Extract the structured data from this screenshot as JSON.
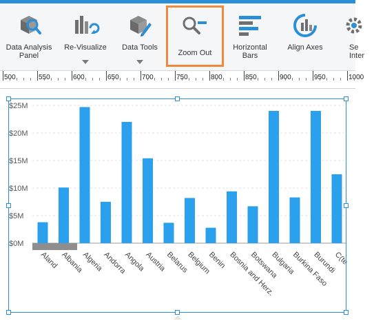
{
  "ribbon": {
    "buttons": [
      {
        "id": "data-analysis-panel",
        "label": "Data Analysis\nPanel",
        "icon": "data-analysis-icon",
        "has_menu": false,
        "active": false
      },
      {
        "id": "re-visualize",
        "label": "Re-Visualize",
        "icon": "re-visualize-icon",
        "has_menu": true,
        "active": false
      },
      {
        "id": "data-tools",
        "label": "Data Tools",
        "icon": "data-tools-icon",
        "has_menu": true,
        "active": false
      },
      {
        "id": "zoom-out",
        "label": "Zoom Out",
        "icon": "zoom-out-icon",
        "has_menu": false,
        "active": true
      },
      {
        "id": "horizontal-bars",
        "label": "Horizontal\nBars",
        "icon": "horizontal-bars-icon",
        "has_menu": false,
        "active": false
      },
      {
        "id": "align-axes",
        "label": "Align Axes",
        "icon": "align-axes-icon",
        "has_menu": false,
        "active": false
      },
      {
        "id": "set-interaction",
        "label": "Se\nInter",
        "icon": "gear-icon",
        "has_menu": false,
        "active": false
      }
    ]
  },
  "ruler": {
    "labels": [
      "500",
      "550",
      "600",
      "650",
      "700",
      "750",
      "800",
      "850",
      "900",
      "950",
      "1000"
    ]
  },
  "colors": {
    "accent": "#2a8fd8",
    "bar": "#2ba1ee",
    "highlight": "#f0883e",
    "icon_gray": "#6f6f6f"
  },
  "chart_data": {
    "type": "bar",
    "title": "",
    "xlabel": "",
    "ylabel": "",
    "categories": [
      "Aland",
      "Albania",
      "Algeria",
      "Andorra",
      "Angola",
      "Austria",
      "Belarus",
      "Belgium",
      "Benin",
      "Bosnia and Herz.",
      "Botswana",
      "Bulgaria",
      "Burkina Faso",
      "Burundi",
      "C(te"
    ],
    "values": [
      3.8,
      10.1,
      24.7,
      7.5,
      22.0,
      15.4,
      3.7,
      8.2,
      2.8,
      9.4,
      6.7,
      24.0,
      8.3,
      24.0,
      12.5
    ],
    "y_tick_labels": [
      "$0M",
      "$5M",
      "$10M",
      "$15M",
      "$20M",
      "$25M"
    ],
    "y_ticks": [
      0,
      5,
      10,
      15,
      20,
      25
    ],
    "ylim": [
      0,
      25
    ],
    "grid": true,
    "legend": "none"
  }
}
